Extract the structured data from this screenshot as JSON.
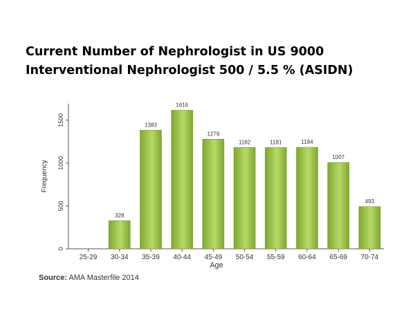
{
  "slide": {
    "title_line1": "Current Number of Nephrologist in US 9000",
    "title_line2": "Interventional Nephrologist 500 / 5.5 % (ASIDN)"
  },
  "source": {
    "label": "Source:",
    "text": "AMA Masterfile 2014"
  },
  "chart_data": {
    "type": "bar",
    "categories": [
      "25-29",
      "30-34",
      "35-39",
      "40-44",
      "45-49",
      "50-54",
      "55-59",
      "60-64",
      "65-69",
      "70-74"
    ],
    "values": [
      null,
      328,
      1383,
      1616,
      1279,
      1182,
      1181,
      1184,
      1007,
      493
    ],
    "data_labels": [
      "",
      "328",
      "1383",
      "1616",
      "1279",
      "1182",
      "1181",
      "1184",
      "1007",
      "493"
    ],
    "xlabel": "Age",
    "ylabel": "Frequency",
    "ylim": [
      0,
      1700
    ],
    "yticks": [
      0,
      500,
      1000,
      1500
    ],
    "grid": false,
    "colors": {
      "bar_light": "#b8d96a",
      "bar_dark": "#7fa82e",
      "axis": "#555555",
      "text": "#333333"
    }
  }
}
